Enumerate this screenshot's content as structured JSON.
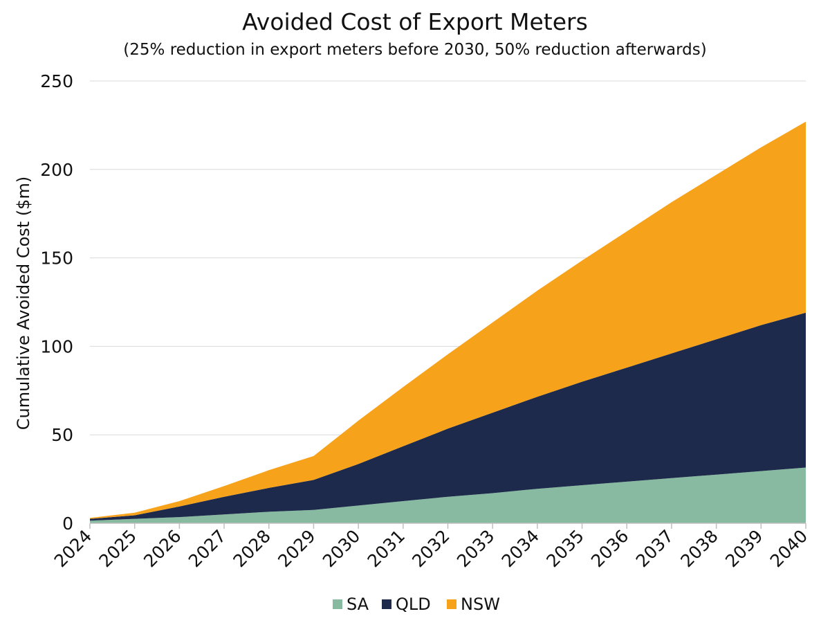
{
  "chart_data": {
    "type": "area",
    "stacked": true,
    "title": "Avoided Cost of Export Meters",
    "subtitle": "(25% reduction in export meters before 2030, 50% reduction afterwards)",
    "xlabel": "",
    "ylabel": "Cumulative Avoided Cost ($m)",
    "ylim": [
      0,
      250
    ],
    "yticks": [
      "0",
      "50",
      "100",
      "150",
      "200",
      "250"
    ],
    "categories": [
      "2024",
      "2025",
      "2026",
      "2027",
      "2028",
      "2029",
      "2030",
      "2031",
      "2032",
      "2033",
      "2034",
      "2035",
      "2036",
      "2037",
      "2038",
      "2039",
      "2040"
    ],
    "series": [
      {
        "name": "SA",
        "color": "#88b9a1",
        "values": [
          1.5,
          2.5,
          3.5,
          5,
          6.5,
          7.5,
          10,
          12.5,
          15,
          17,
          19.5,
          21.5,
          23.5,
          25.5,
          27.5,
          29.5,
          31.5
        ]
      },
      {
        "name": "QLD",
        "color": "#1d2a4b",
        "values": [
          1,
          2,
          6,
          10,
          13.5,
          17,
          23.5,
          31,
          38.5,
          45.5,
          52,
          58.5,
          64.5,
          70.5,
          76.5,
          82.5,
          87.5
        ]
      },
      {
        "name": "NSW",
        "color": "#f7a21b",
        "values": [
          0.5,
          1.5,
          3,
          6,
          10,
          13.5,
          24.5,
          33.5,
          42,
          51,
          60,
          68.5,
          77,
          85.5,
          93,
          100.5,
          108
        ]
      }
    ],
    "grid": true,
    "legend": "bottom-center"
  }
}
